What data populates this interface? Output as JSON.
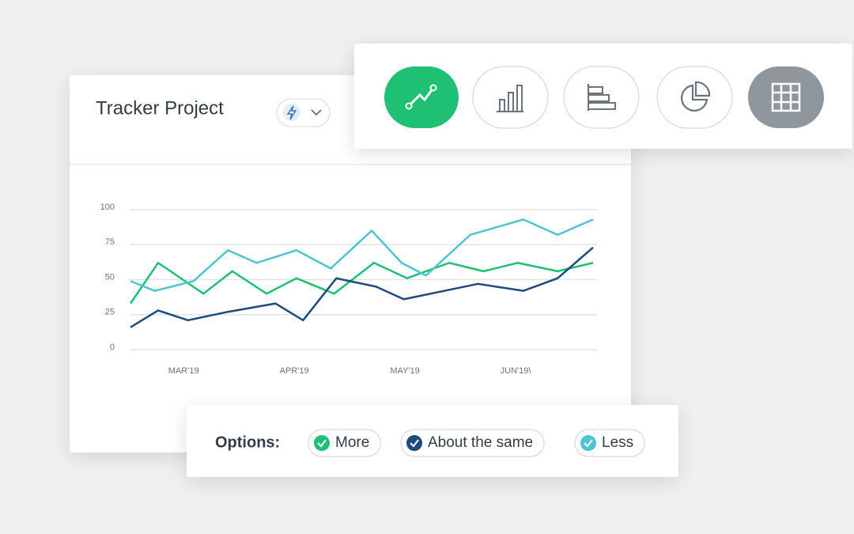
{
  "chart_data": {
    "type": "line",
    "title": "Tracker Project",
    "legend_label": "Options:",
    "xlim": [
      2.52,
      6.7
    ],
    "xticks": [
      {
        "value": 3,
        "label": "MAR'19"
      },
      {
        "value": 4,
        "label": "APR'19"
      },
      {
        "value": 5,
        "label": "MAY'19"
      },
      {
        "value": 6,
        "label": "JUN'19\\"
      }
    ],
    "ylim": [
      0,
      100
    ],
    "yticks": [
      0,
      25,
      50,
      75,
      100
    ],
    "grid": true,
    "series": [
      {
        "name": "More",
        "color": "#1fbf74",
        "x": [
          2.52,
          2.77,
          3.18,
          3.44,
          3.75,
          4.02,
          4.36,
          4.72,
          5.02,
          5.4,
          5.71,
          6.02,
          6.38,
          6.7
        ],
        "values": [
          33,
          62,
          40,
          56,
          40,
          51,
          40,
          62,
          51,
          62,
          56,
          62,
          56,
          62
        ]
      },
      {
        "name": "About the same",
        "color": "#1e4a7c",
        "x": [
          2.52,
          2.77,
          3.04,
          3.4,
          3.83,
          4.08,
          4.38,
          4.74,
          4.99,
          5.66,
          6.07,
          6.38,
          6.7
        ],
        "values": [
          16,
          28,
          21,
          27,
          33,
          21,
          51,
          45,
          36,
          47,
          42,
          51,
          73
        ]
      },
      {
        "name": "Less",
        "color": "#4cc5d0",
        "x": [
          2.52,
          2.74,
          3.09,
          3.4,
          3.66,
          4.02,
          4.33,
          4.7,
          4.97,
          5.19,
          5.59,
          6.07,
          6.38,
          6.7
        ],
        "values": [
          49,
          42,
          49,
          71,
          62,
          71,
          58,
          85,
          62,
          53,
          82,
          93,
          82,
          93
        ]
      }
    ]
  }
}
